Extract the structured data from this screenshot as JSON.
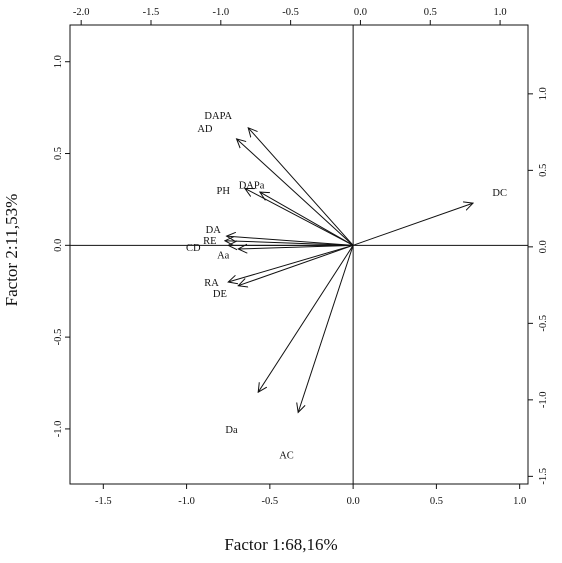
{
  "chart_data": {
    "type": "scatter",
    "subtype": "pca-biplot",
    "xlabel": "Factor 1:68,16%",
    "ylabel": "Factor 2:11,53%",
    "xlim": [
      -1.7,
      1.05
    ],
    "ylim": [
      -1.3,
      1.2
    ],
    "x_ticks": [
      "-1.5",
      "-1.0",
      "-0.5",
      "0.0",
      "0.5",
      "1.0"
    ],
    "y_ticks": [
      "-1.0",
      "-0.5",
      "0.0",
      "0.5",
      "1.0"
    ],
    "top_axis": {
      "xlim": [
        -2.08,
        1.2
      ],
      "ticks": [
        "-2.0",
        "-1.5",
        "-1.0",
        "-0.5",
        "0.0",
        "0.5",
        "1.0"
      ]
    },
    "right_axis": {
      "ylim": [
        -1.55,
        1.45
      ],
      "ticks": [
        "-1.5",
        "-1.0",
        "-0.5",
        "0.0",
        "0.5",
        "1.0"
      ]
    },
    "reference_lines": {
      "x": 0,
      "y": 0
    },
    "grid": false,
    "legend": "none",
    "arrows": [
      {
        "x": -0.63,
        "y": 0.64
      },
      {
        "x": -0.7,
        "y": 0.58
      },
      {
        "x": -0.56,
        "y": 0.29
      },
      {
        "x": -0.65,
        "y": 0.31
      },
      {
        "x": 0.72,
        "y": 0.23
      },
      {
        "x": -0.76,
        "y": 0.05
      },
      {
        "x": -0.77,
        "y": 0.025
      },
      {
        "x": -0.75,
        "y": 0.0
      },
      {
        "x": -0.69,
        "y": -0.02
      },
      {
        "x": -0.75,
        "y": -0.2
      },
      {
        "x": -0.69,
        "y": -0.22
      },
      {
        "x": -0.57,
        "y": -0.8
      },
      {
        "x": -0.33,
        "y": -0.91
      }
    ],
    "variable_labels": [
      {
        "text": "DAPA",
        "x": -0.81,
        "y": 0.71
      },
      {
        "text": "AD",
        "x": -0.89,
        "y": 0.64
      },
      {
        "text": "DAPa",
        "x": -0.61,
        "y": 0.33
      },
      {
        "text": "PH",
        "x": -0.78,
        "y": 0.3
      },
      {
        "text": "DC",
        "x": 0.88,
        "y": 0.29
      },
      {
        "text": "DA",
        "x": -0.84,
        "y": 0.09
      },
      {
        "text": "RE",
        "x": -0.86,
        "y": 0.03
      },
      {
        "text": "CD",
        "x": -0.96,
        "y": -0.01
      },
      {
        "text": "Aa",
        "x": -0.78,
        "y": -0.05
      },
      {
        "text": "RA",
        "x": -0.85,
        "y": -0.2
      },
      {
        "text": "DE",
        "x": -0.8,
        "y": -0.26
      },
      {
        "text": "Da",
        "x": -0.73,
        "y": -1.0
      },
      {
        "text": "AC",
        "x": -0.4,
        "y": -1.14
      }
    ],
    "color": "#111111"
  }
}
